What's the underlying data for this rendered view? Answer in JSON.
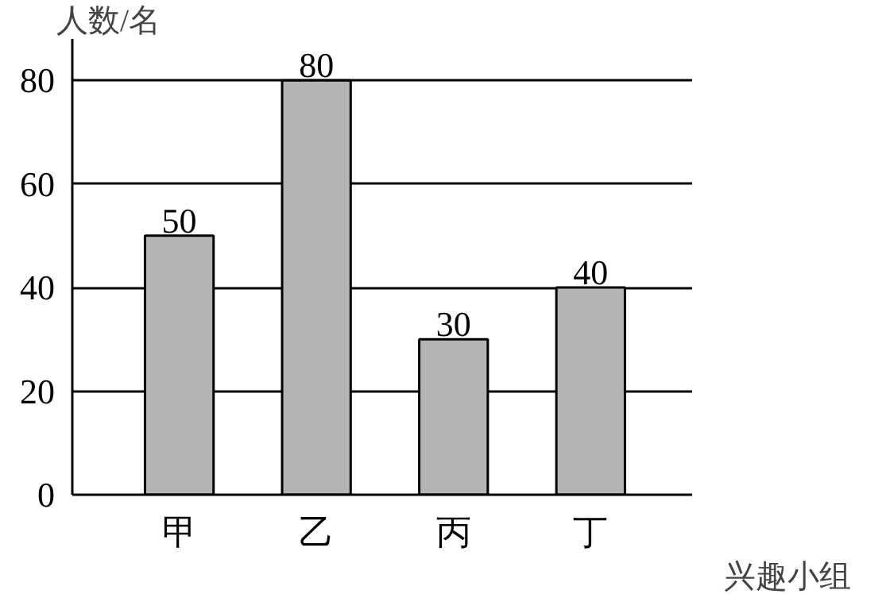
{
  "chart_data": {
    "type": "bar",
    "xlabel": "兴趣小组",
    "ylabel": "人数/名",
    "categories": [
      "甲",
      "乙",
      "丙",
      "丁"
    ],
    "values": [
      50,
      80,
      30,
      40
    ],
    "color": "#b4b4b4",
    "ylim": [
      0,
      88
    ],
    "yticks": [
      0,
      20,
      40,
      60,
      80
    ],
    "grid": "y",
    "data_labels": true
  }
}
